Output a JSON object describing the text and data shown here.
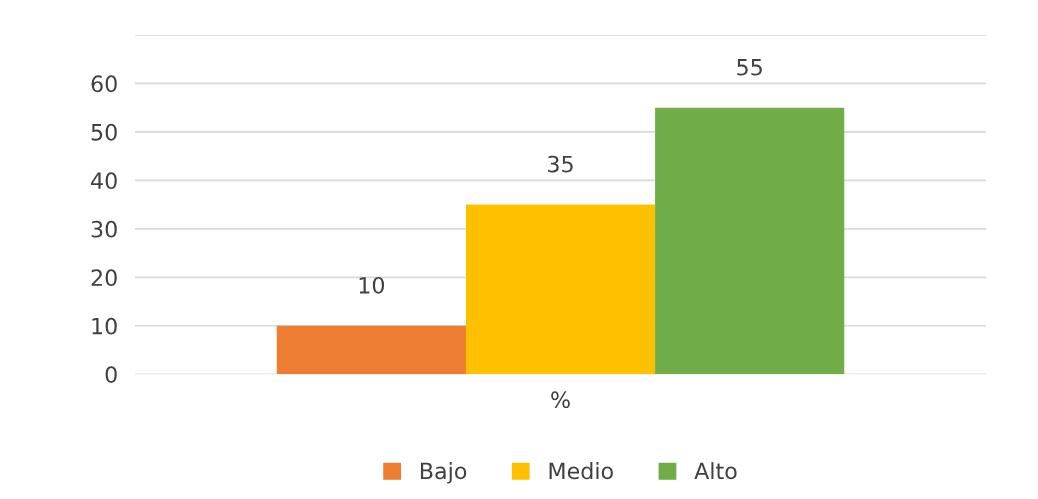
{
  "chart_data": {
    "type": "bar",
    "categories": [
      "%"
    ],
    "series": [
      {
        "name": "Bajo",
        "color": "#ed7d31",
        "values": [
          10
        ]
      },
      {
        "name": "Medio",
        "color": "#ffc000",
        "values": [
          35
        ]
      },
      {
        "name": "Alto",
        "color": "#70ad47",
        "values": [
          55
        ]
      }
    ],
    "ylim": [
      0,
      70
    ],
    "yticks": [
      0,
      10,
      20,
      30,
      40,
      50,
      60,
      {
        "value": 70,
        "label": null
      }
    ],
    "data_labels": true,
    "grid": "y",
    "legend": "bottom"
  }
}
